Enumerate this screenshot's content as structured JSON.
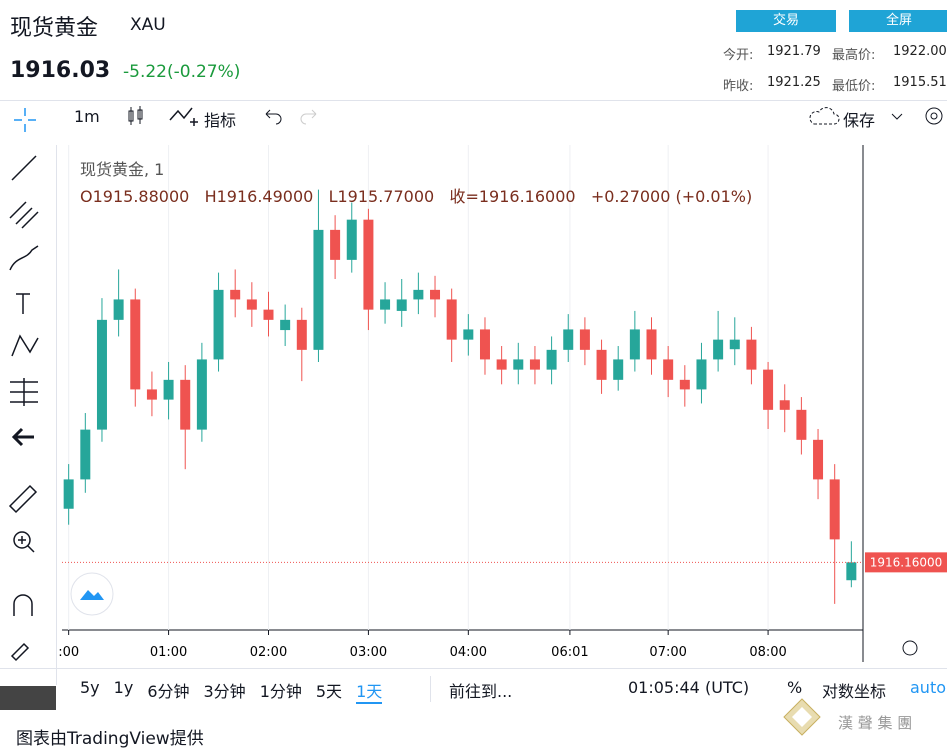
{
  "header": {
    "name": "现货黄金",
    "symbol": "XAU",
    "price": "1916.03",
    "change": "-5.22(-0.27%)",
    "trade": "交易",
    "fullscreen": "全屏",
    "open_label": "今开:",
    "open": "1921.79",
    "high_label": "最高价:",
    "high": "1922.00",
    "prev_label": "昨收:",
    "prev": "1921.25",
    "low_label": "最低价:",
    "low": "1915.51"
  },
  "toolbar": {
    "interval": "1m",
    "indicators": "指标",
    "save": "保存"
  },
  "legend": {
    "title": "现货黄金, 1",
    "o": "O1915.88000",
    "h": "H1916.49000",
    "l": "L1915.77000",
    "c": "收=1916.16000",
    "change": "+0.27000 (+0.01%)"
  },
  "bottom_bar": {
    "ranges": [
      "5y",
      "1y",
      "6分钟",
      "3分钟",
      "1分钟",
      "5天",
      "1天"
    ],
    "goto": "前往到...",
    "time": "01:05:44 (UTC)",
    "percent": "%",
    "log": "对数坐标",
    "auto": "auto"
  },
  "footer": "图表由TradingView提供",
  "watermark": "漢 聲 集 團",
  "chart_data": {
    "type": "candlestick",
    "up_color": "#26a69a",
    "down_color": "#ef5350",
    "grid": true,
    "x": [
      0,
      10,
      20,
      30,
      40,
      50,
      60,
      70,
      80,
      90,
      100,
      110,
      120,
      130,
      140,
      150,
      160,
      170,
      180,
      190,
      200,
      210,
      220,
      230,
      240,
      250,
      260,
      270,
      280,
      290,
      300,
      310,
      320,
      330,
      340,
      350,
      360,
      370,
      380,
      390,
      400,
      410,
      420,
      430,
      440,
      450,
      460,
      470
    ],
    "open": [
      1917.0,
      1917.46,
      1918.24,
      1919.96,
      1920.28,
      1918.87,
      1918.71,
      1919.02,
      1918.24,
      1919.34,
      1920.43,
      1920.28,
      1920.12,
      1919.8,
      1919.96,
      1919.49,
      1921.37,
      1920.9,
      1921.53,
      1920.12,
      1920.1,
      1920.28,
      1920.43,
      1920.28,
      1919.65,
      1919.81,
      1919.34,
      1919.18,
      1919.34,
      1919.18,
      1919.49,
      1919.81,
      1919.49,
      1919.02,
      1919.34,
      1919.81,
      1919.34,
      1919.02,
      1918.87,
      1919.34,
      1919.5,
      1919.65,
      1919.18,
      1918.7,
      1918.55,
      1918.08,
      1917.46,
      1915.88
    ],
    "high": [
      1917.7,
      1918.5,
      1920.3,
      1920.75,
      1920.45,
      1919.15,
      1919.3,
      1919.25,
      1919.6,
      1920.7,
      1920.75,
      1920.55,
      1920.4,
      1920.2,
      1920.15,
      1922.0,
      1921.6,
      1921.8,
      1921.7,
      1920.55,
      1920.6,
      1920.7,
      1920.65,
      1920.45,
      1920.05,
      1920.0,
      1919.55,
      1919.6,
      1919.55,
      1919.7,
      1920.05,
      1920.0,
      1919.65,
      1919.55,
      1920.1,
      1920.0,
      1919.55,
      1919.25,
      1919.6,
      1920.1,
      1920.0,
      1919.85,
      1919.3,
      1918.95,
      1918.75,
      1918.25,
      1917.7,
      1916.49
    ],
    "low": [
      1916.75,
      1917.25,
      1918.05,
      1919.7,
      1918.6,
      1918.45,
      1918.4,
      1917.62,
      1918.05,
      1919.15,
      1920.0,
      1919.85,
      1919.7,
      1919.55,
      1919.0,
      1919.3,
      1920.6,
      1920.7,
      1919.8,
      1919.9,
      1919.85,
      1920.05,
      1920.0,
      1919.3,
      1919.4,
      1919.1,
      1918.95,
      1918.95,
      1918.95,
      1918.95,
      1919.3,
      1919.25,
      1918.8,
      1918.85,
      1919.15,
      1919.1,
      1918.75,
      1918.6,
      1918.65,
      1919.15,
      1919.25,
      1918.95,
      1918.25,
      1918.2,
      1917.85,
      1917.15,
      1915.51,
      1915.77
    ],
    "close": [
      1917.46,
      1918.24,
      1919.96,
      1920.28,
      1918.87,
      1918.71,
      1919.02,
      1918.24,
      1919.34,
      1920.43,
      1920.28,
      1920.12,
      1919.96,
      1919.96,
      1919.49,
      1921.37,
      1920.9,
      1921.53,
      1920.12,
      1920.28,
      1920.28,
      1920.43,
      1920.28,
      1919.65,
      1919.81,
      1919.34,
      1919.18,
      1919.34,
      1919.18,
      1919.49,
      1919.81,
      1919.49,
      1919.02,
      1919.34,
      1919.81,
      1919.34,
      1919.02,
      1918.87,
      1919.34,
      1919.65,
      1919.65,
      1919.18,
      1918.55,
      1918.55,
      1918.08,
      1917.46,
      1916.52,
      1916.16
    ],
    "xlim": [
      -4,
      477
    ],
    "ylim": [
      1915.1,
      1922.7
    ],
    "xticks": [
      {
        "value": 0,
        "label": ":00"
      },
      {
        "value": 60,
        "label": "01:00"
      },
      {
        "value": 120,
        "label": "02:00"
      },
      {
        "value": 180,
        "label": "03:00"
      },
      {
        "value": 240,
        "label": "04:00"
      },
      {
        "value": 301,
        "label": "06:01"
      },
      {
        "value": 360,
        "label": "07:00"
      },
      {
        "value": 420,
        "label": "08:00"
      }
    ],
    "price_line": {
      "value": 1916.16,
      "label": "1916.16000"
    }
  }
}
